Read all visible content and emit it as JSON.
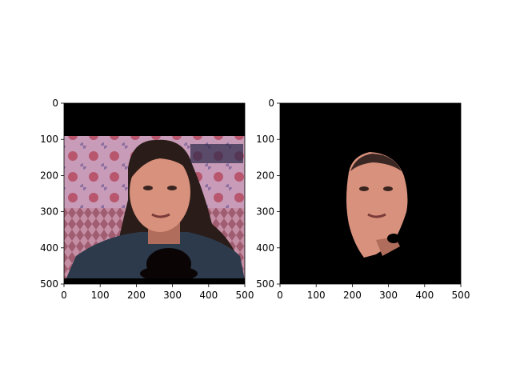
{
  "figure": {
    "background": "#ffffff",
    "panels": [
      {
        "name": "left-panel",
        "content": "video-frame-woman-face-with-patterned-background",
        "x_ticks": [
          "0",
          "100",
          "200",
          "300",
          "400",
          "500"
        ],
        "y_ticks": [
          "0",
          "100",
          "200",
          "300",
          "400",
          "500"
        ]
      },
      {
        "name": "right-panel",
        "content": "segmented-face-mask-on-black",
        "x_ticks": [
          "0",
          "100",
          "200",
          "300",
          "400",
          "500"
        ],
        "y_ticks": [
          "0",
          "100",
          "200",
          "300",
          "400",
          "500"
        ]
      }
    ]
  },
  "colors": {
    "black": "#000000",
    "skin": "#d8917c",
    "skin_shadow": "#b06d5c",
    "hair": "#2a1c18",
    "jacket": "#2c3a4c",
    "curtain_pink": "#c58ca8",
    "curtain_red": "#b0506a",
    "curtain_lower": "#9a5a6c"
  }
}
